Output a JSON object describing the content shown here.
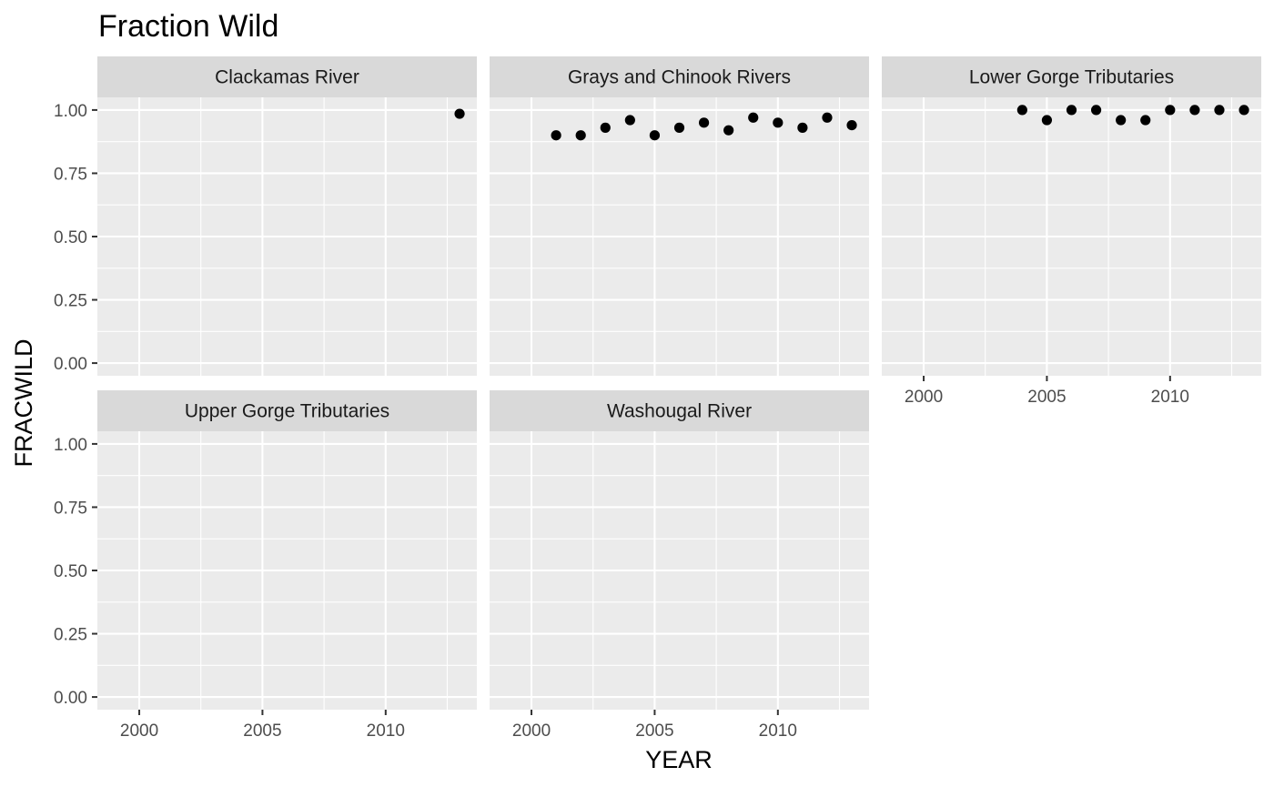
{
  "chart_data": {
    "type": "scatter",
    "title": "Fraction Wild",
    "xlabel": "YEAR",
    "ylabel": "FRACWILD",
    "xlim": [
      1998.3,
      2013.7
    ],
    "ylim": [
      -0.05,
      1.05
    ],
    "x_ticks": [
      2000,
      2005,
      2010
    ],
    "x_tick_labels": [
      "2000",
      "2005",
      "2010"
    ],
    "x_minor_ticks": [
      2002.5,
      2007.5,
      2012.5
    ],
    "y_ticks": [
      0,
      0.25,
      0.5,
      0.75,
      1
    ],
    "y_tick_labels": [
      "0.00",
      "0.25",
      "0.50",
      "0.75",
      "1.00"
    ],
    "y_minor_ticks": [
      0.125,
      0.375,
      0.625,
      0.875
    ],
    "grid": true,
    "facets": [
      {
        "name": "Clackamas River",
        "points": [
          {
            "x": 2013,
            "y": 0.985
          }
        ]
      },
      {
        "name": "Grays and Chinook Rivers",
        "points": [
          {
            "x": 2001,
            "y": 0.9
          },
          {
            "x": 2002,
            "y": 0.9
          },
          {
            "x": 2003,
            "y": 0.93
          },
          {
            "x": 2004,
            "y": 0.96
          },
          {
            "x": 2005,
            "y": 0.9
          },
          {
            "x": 2006,
            "y": 0.93
          },
          {
            "x": 2007,
            "y": 0.95
          },
          {
            "x": 2008,
            "y": 0.92
          },
          {
            "x": 2009,
            "y": 0.97
          },
          {
            "x": 2010,
            "y": 0.95
          },
          {
            "x": 2011,
            "y": 0.93
          },
          {
            "x": 2012,
            "y": 0.97
          },
          {
            "x": 2013,
            "y": 0.94
          }
        ]
      },
      {
        "name": "Lower Gorge Tributaries",
        "points": [
          {
            "x": 2004,
            "y": 1.0
          },
          {
            "x": 2005,
            "y": 0.96
          },
          {
            "x": 2006,
            "y": 1.0
          },
          {
            "x": 2007,
            "y": 1.0
          },
          {
            "x": 2008,
            "y": 0.96
          },
          {
            "x": 2009,
            "y": 0.96
          },
          {
            "x": 2010,
            "y": 1.0
          },
          {
            "x": 2011,
            "y": 1.0
          },
          {
            "x": 2012,
            "y": 1.0
          },
          {
            "x": 2013,
            "y": 1.0
          }
        ]
      },
      {
        "name": "Upper Gorge Tributaries",
        "points": []
      },
      {
        "name": "Washougal River",
        "points": []
      }
    ]
  }
}
